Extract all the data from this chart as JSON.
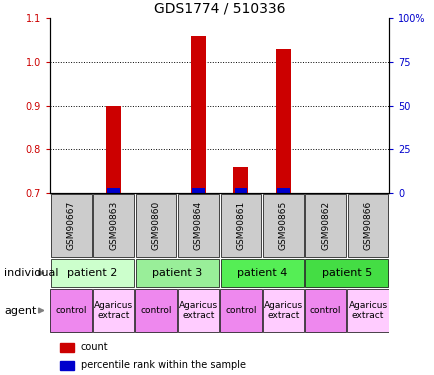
{
  "title": "GDS1774 / 510336",
  "samples": [
    "GSM90667",
    "GSM90863",
    "GSM90860",
    "GSM90864",
    "GSM90861",
    "GSM90865",
    "GSM90862",
    "GSM90866"
  ],
  "count_values": [
    0,
    0.9,
    0,
    1.06,
    0.76,
    1.03,
    0,
    0
  ],
  "percentile_values": [
    0,
    0.72,
    0,
    0.725,
    0.705,
    0.725,
    0,
    0
  ],
  "ylim_left": [
    0.7,
    1.1
  ],
  "ylim_right": [
    0,
    100
  ],
  "yticks_left": [
    0.7,
    0.8,
    0.9,
    1.0,
    1.1
  ],
  "yticks_right": [
    0,
    25,
    50,
    75,
    100
  ],
  "ytick_labels_right": [
    "0",
    "25",
    "50",
    "75",
    "100%"
  ],
  "bar_bottom": 0.7,
  "individuals": [
    {
      "label": "patient 2",
      "span": [
        0,
        2
      ],
      "color": "#ccffcc"
    },
    {
      "label": "patient 3",
      "span": [
        2,
        4
      ],
      "color": "#99ee99"
    },
    {
      "label": "patient 4",
      "span": [
        4,
        6
      ],
      "color": "#55ee55"
    },
    {
      "label": "patient 5",
      "span": [
        6,
        8
      ],
      "color": "#44dd44"
    }
  ],
  "agents": [
    {
      "label": "control",
      "span": [
        0,
        1
      ],
      "color": "#ee88ee"
    },
    {
      "label": "Agaricus\nextract",
      "span": [
        1,
        2
      ],
      "color": "#ffccff"
    },
    {
      "label": "control",
      "span": [
        2,
        3
      ],
      "color": "#ee88ee"
    },
    {
      "label": "Agaricus\nextract",
      "span": [
        3,
        4
      ],
      "color": "#ffccff"
    },
    {
      "label": "control",
      "span": [
        4,
        5
      ],
      "color": "#ee88ee"
    },
    {
      "label": "Agaricus\nextract",
      "span": [
        5,
        6
      ],
      "color": "#ffccff"
    },
    {
      "label": "control",
      "span": [
        6,
        7
      ],
      "color": "#ee88ee"
    },
    {
      "label": "Agaricus\nextract",
      "span": [
        7,
        8
      ],
      "color": "#ffccff"
    }
  ],
  "bar_color_red": "#cc0000",
  "bar_color_blue": "#0000cc",
  "bar_width": 0.35,
  "tick_fontsize": 7,
  "title_fontsize": 10,
  "left_color": "#cc0000",
  "right_color": "#0000cc",
  "sample_bg_color": "#cccccc",
  "row_label_fontsize": 8,
  "individual_fontsize": 8,
  "agent_fontsize": 6.5,
  "legend_fontsize": 7
}
